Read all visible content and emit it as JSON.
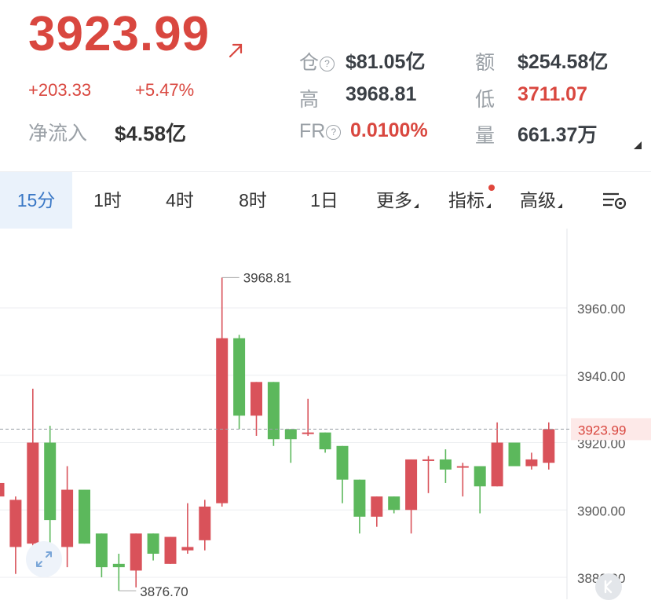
{
  "ticker": {
    "price": "3923.99",
    "change": "+203.33",
    "change_pct": "+5.47%",
    "net_inflow_label": "净流入",
    "net_inflow_value": "$4.58亿"
  },
  "stats": {
    "oi_label": "仓",
    "oi_value": "$81.05亿",
    "amount_label": "额",
    "amount_value": "$254.58亿",
    "high_label": "高",
    "high_value": "3968.81",
    "low_label": "低",
    "low_value": "3711.07",
    "fr_label": "FR",
    "fr_value": "0.0100%",
    "volume_label": "量",
    "volume_value": "661.37万",
    "help_glyph": "?"
  },
  "tabs": {
    "items": [
      "15分",
      "1时",
      "4时",
      "8时",
      "1日"
    ],
    "more": "更多",
    "indicators": "指标",
    "advanced": "高级",
    "active_index": 0
  },
  "colors": {
    "up": "#d9525a",
    "down": "#5cb85c",
    "accent": "#3a78c6",
    "price_red": "#d9473f"
  },
  "icons": [
    "arrow-up-right-icon",
    "help-circle-icon",
    "chart-settings-icon",
    "expand-icon",
    "k-line-icon"
  ],
  "chart_data": {
    "type": "candlestick",
    "y_ticks": [
      "3960.00",
      "3940.00",
      "3920.00",
      "3900.00",
      "3880.00"
    ],
    "current_price_label": "3923.99",
    "high_marker": "3968.81",
    "low_marker": "3876.70",
    "candles": [
      {
        "o": 3904,
        "h": 3911,
        "l": 3893,
        "c": 3908
      },
      {
        "o": 3889,
        "h": 3904,
        "l": 3881,
        "c": 3903
      },
      {
        "o": 3890,
        "h": 3936,
        "l": 3886,
        "c": 3920
      },
      {
        "o": 3920,
        "h": 3925,
        "l": 3887,
        "c": 3897
      },
      {
        "o": 3889,
        "h": 3913,
        "l": 3883,
        "c": 3906
      },
      {
        "o": 3906,
        "h": 3906,
        "l": 3890,
        "c": 3890
      },
      {
        "o": 3893,
        "h": 3893,
        "l": 3880,
        "c": 3883
      },
      {
        "o": 3884,
        "h": 3887,
        "l": 3876,
        "c": 3883
      },
      {
        "o": 3882,
        "h": 3893,
        "l": 3877,
        "c": 3893
      },
      {
        "o": 3893,
        "h": 3893,
        "l": 3885,
        "c": 3887
      },
      {
        "o": 3884,
        "h": 3892,
        "l": 3884,
        "c": 3892
      },
      {
        "o": 3888,
        "h": 3902,
        "l": 3887,
        "c": 3889
      },
      {
        "o": 3891,
        "h": 3903,
        "l": 3888,
        "c": 3901
      },
      {
        "o": 3902,
        "h": 3969,
        "l": 3901,
        "c": 3951
      },
      {
        "o": 3951,
        "h": 3952,
        "l": 3924,
        "c": 3928
      },
      {
        "o": 3928,
        "h": 3938,
        "l": 3922,
        "c": 3938
      },
      {
        "o": 3938,
        "h": 3938,
        "l": 3919,
        "c": 3921
      },
      {
        "o": 3924,
        "h": 3924,
        "l": 3914,
        "c": 3921
      },
      {
        "o": 3923,
        "h": 3933,
        "l": 3922,
        "c": 3923
      },
      {
        "o": 3923,
        "h": 3923,
        "l": 3917,
        "c": 3918
      },
      {
        "o": 3919,
        "h": 3919,
        "l": 3902,
        "c": 3909
      },
      {
        "o": 3909,
        "h": 3909,
        "l": 3893,
        "c": 3898
      },
      {
        "o": 3898,
        "h": 3904,
        "l": 3895,
        "c": 3904
      },
      {
        "o": 3904,
        "h": 3904,
        "l": 3899,
        "c": 3900
      },
      {
        "o": 3900,
        "h": 3915,
        "l": 3893,
        "c": 3915
      },
      {
        "o": 3915,
        "h": 3916,
        "l": 3905,
        "c": 3915
      },
      {
        "o": 3915,
        "h": 3918,
        "l": 3908,
        "c": 3912
      },
      {
        "o": 3913,
        "h": 3914,
        "l": 3904,
        "c": 3913
      },
      {
        "o": 3913,
        "h": 3913,
        "l": 3899,
        "c": 3907
      },
      {
        "o": 3907,
        "h": 3926,
        "l": 3907,
        "c": 3920
      },
      {
        "o": 3920,
        "h": 3920,
        "l": 3913,
        "c": 3913
      },
      {
        "o": 3913,
        "h": 3917,
        "l": 3912,
        "c": 3915
      },
      {
        "o": 3914,
        "h": 3926,
        "l": 3912,
        "c": 3924
      }
    ]
  }
}
